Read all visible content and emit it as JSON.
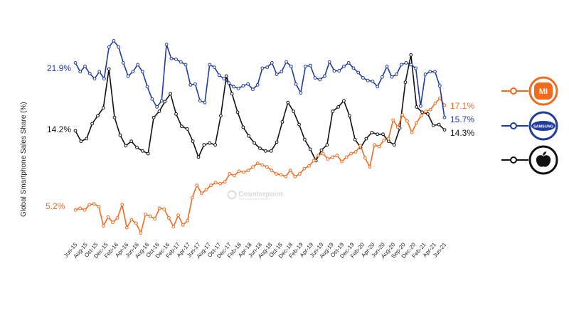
{
  "chart_data": {
    "type": "line",
    "title": "",
    "xlabel": "",
    "ylabel": "Global Smartphone Sales Share (%)",
    "x_tick_labels": [
      "Jun-15",
      "Aug-15",
      "Oct-15",
      "Dec-15",
      "Feb-16",
      "Apr-16",
      "Jun-16",
      "Aug-16",
      "Oct-16",
      "Dec-16",
      "Feb-17",
      "Apr-17",
      "Jun-17",
      "Aug-17",
      "Oct-17",
      "Dec-17",
      "Feb-18",
      "Apr-18",
      "Jun-18",
      "Aug-18",
      "Oct-18",
      "Dec-18",
      "Feb-19",
      "Apr-19",
      "Jun-19",
      "Aug-19",
      "Oct-19",
      "Dec-19",
      "Feb-20",
      "Apr-20",
      "Jun-20",
      "Aug-20",
      "Sep-20",
      "Dec-20",
      "Feb-21",
      "Apr-21",
      "Jun-21"
    ],
    "x_start": "2015-06",
    "x_end": "2021-06",
    "ylim": [
      2,
      25
    ],
    "grid": false,
    "series": [
      {
        "key": "samsung",
        "color": "#1f3c9f",
        "start_label": "21.9%",
        "end_label": "15.7%",
        "values": [
          21.9,
          20.9,
          21.5,
          20.7,
          20.1,
          20.9,
          20.1,
          23.7,
          24.4,
          23.7,
          21.9,
          20.4,
          20.9,
          21.7,
          20.9,
          19.2,
          17.8,
          16.9,
          17.6,
          24.0,
          22.4,
          22.3,
          22.0,
          21.7,
          19.4,
          19.5,
          17.6,
          17.4,
          21.7,
          21.4,
          20.5,
          20.1,
          19.6,
          19.2,
          19.0,
          19.3,
          19.5,
          18.9,
          19.4,
          21.3,
          21.4,
          21.9,
          20.6,
          20.9,
          22.0,
          21.5,
          19.5,
          18.5,
          21.5,
          21.6,
          20.2,
          20.0,
          20.4,
          22.0,
          21.0,
          21.0,
          21.5,
          21.9,
          21.3,
          20.8,
          20.2,
          19.9,
          19.8,
          19.2,
          20.3,
          21.5,
          20.3,
          20.6,
          21.7,
          21.9,
          21.7,
          21.3,
          17.0,
          20.6,
          20.9,
          20.9,
          19.3,
          15.7
        ]
      },
      {
        "key": "apple",
        "color": "#111111",
        "start_label": "14.2%",
        "end_label": "14.3%",
        "values": [
          14.2,
          13.0,
          13.3,
          15.0,
          15.9,
          16.8,
          21.2,
          15.7,
          13.7,
          12.5,
          13.0,
          12.3,
          11.9,
          11.6,
          15.7,
          16.4,
          17.5,
          18.4,
          16.1,
          14.7,
          14.4,
          13.0,
          11.2,
          12.6,
          12.8,
          12.6,
          15.9,
          20.4,
          18.4,
          16.3,
          14.6,
          13.6,
          12.8,
          12.2,
          11.9,
          11.9,
          12.9,
          15.2,
          17.4,
          16.4,
          14.9,
          13.2,
          12.1,
          10.8,
          12.0,
          12.6,
          16.4,
          16.9,
          17.6,
          15.9,
          13.2,
          12.3,
          13.3,
          14.0,
          13.8,
          13.8,
          13.0,
          12.6,
          14.5,
          19.7,
          22.8,
          16.9,
          16.3,
          16.1,
          14.8,
          14.9,
          14.3
        ]
      },
      {
        "key": "xiaomi",
        "color": "#f26b1d",
        "start_label": "5.2%",
        "end_label": "17.1%",
        "values": [
          5.2,
          5.4,
          5.2,
          5.8,
          5.9,
          5.6,
          3.4,
          4.4,
          3.8,
          4.3,
          5.8,
          3.2,
          4.1,
          3.7,
          2.6,
          4.7,
          4.5,
          4.2,
          5.4,
          5.3,
          4.3,
          3.3,
          4.6,
          3.5,
          4.0,
          6.6,
          8.0,
          7.1,
          7.5,
          8.0,
          8.3,
          8.2,
          8.4,
          9.3,
          9.1,
          9.6,
          9.5,
          9.7,
          10.1,
          10.5,
          10.3,
          10.1,
          9.7,
          9.3,
          9.2,
          9.0,
          9.7,
          9.0,
          9.3,
          9.9,
          10.2,
          10.8,
          11.4,
          11.6,
          11.0,
          11.2,
          11.4,
          10.7,
          11.2,
          11.6,
          11.8,
          12.5,
          11.1,
          10.1,
          12.6,
          12.4,
          13.1,
          13.3,
          15.4,
          14.6,
          16.0,
          15.3,
          14.0,
          15.1,
          15.9,
          16.4,
          16.6,
          17.3,
          17.9,
          17.1
        ]
      }
    ],
    "legend": {
      "position": "right",
      "entries": [
        {
          "key": "xiaomi",
          "logo_text": "MI",
          "color": "#f26b1d"
        },
        {
          "key": "samsung",
          "logo_text": "SAMSUNG",
          "color": "#1f3c9f"
        },
        {
          "key": "apple",
          "logo_text": "apple-logo",
          "color": "#111111"
        }
      ]
    },
    "watermark": {
      "name": "Counterpoint",
      "tagline": "Technology Market Research"
    }
  }
}
